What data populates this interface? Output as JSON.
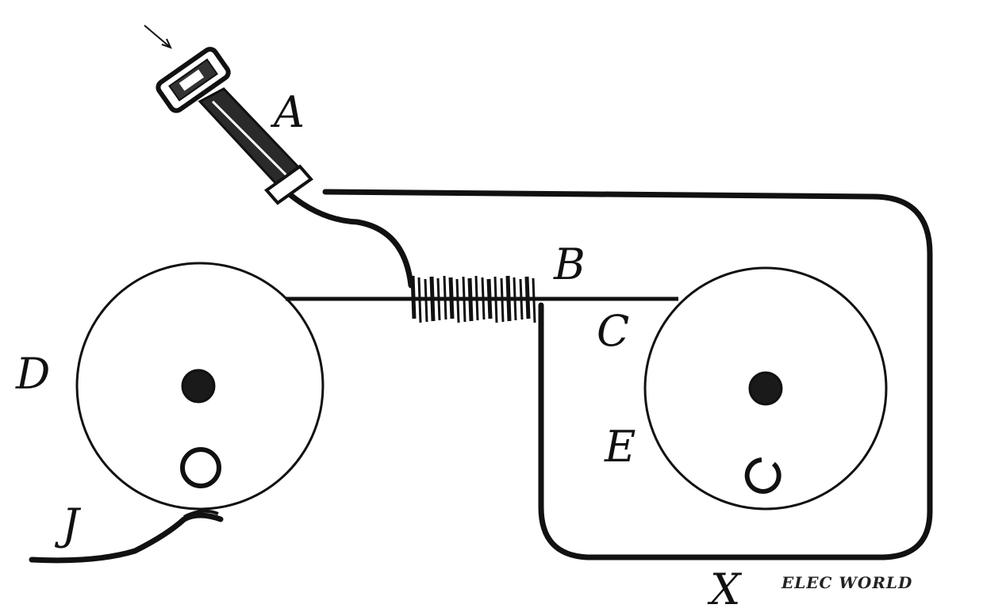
{
  "labels": {
    "A": "A",
    "B": "B",
    "C": "C",
    "D": "D",
    "E": "E",
    "J": "J",
    "X": "X"
  },
  "credit": "ELEC WORLD"
}
